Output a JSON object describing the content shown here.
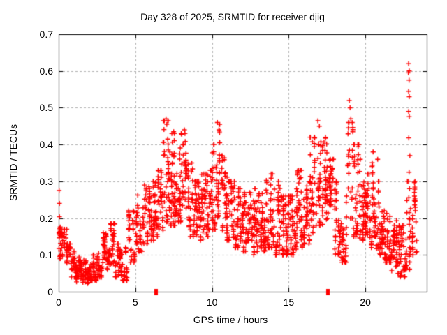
{
  "chart_data": {
    "type": "scatter",
    "title": "Day 328 of 2025, SRMTID for receiver djig",
    "xlabel": "GPS time / hours",
    "ylabel": "SRMTID / TECUs",
    "xlim": [
      0,
      24
    ],
    "ylim": [
      0,
      0.7
    ],
    "xticks": [
      {
        "v": 0,
        "label": "0"
      },
      {
        "v": 5,
        "label": "5"
      },
      {
        "v": 10,
        "label": "10"
      },
      {
        "v": 15,
        "label": "15"
      },
      {
        "v": 20,
        "label": "20"
      }
    ],
    "yticks": [
      {
        "v": 0.0,
        "label": "0"
      },
      {
        "v": 0.1,
        "label": "0.1"
      },
      {
        "v": 0.2,
        "label": "0.2"
      },
      {
        "v": 0.3,
        "label": "0.3"
      },
      {
        "v": 0.4,
        "label": "0.4"
      },
      {
        "v": 0.5,
        "label": "0.5"
      },
      {
        "v": 0.6,
        "label": "0.6"
      },
      {
        "v": 0.7,
        "label": "0.7"
      }
    ],
    "grid": true,
    "legend": "none",
    "marker": {
      "shape": "plus",
      "color": "#ff0000",
      "size": 7
    },
    "colors": {
      "marker": "#ff0000",
      "grid": "#b0b0b0",
      "frame": "#000000",
      "background": "#ffffff",
      "text": "#000000"
    },
    "axis_marker_squares_hours": [
      6.35,
      17.55
    ],
    "seed": 1328,
    "envelope_bins": [
      [
        0.0,
        0.15,
        0.09,
        0.28,
        22
      ],
      [
        0.15,
        0.5,
        0.055,
        0.17,
        30
      ],
      [
        0.5,
        0.9,
        0.04,
        0.13,
        36
      ],
      [
        0.9,
        1.3,
        0.025,
        0.11,
        38
      ],
      [
        1.3,
        1.7,
        0.02,
        0.09,
        40
      ],
      [
        1.7,
        2.1,
        0.02,
        0.085,
        44
      ],
      [
        2.1,
        2.5,
        0.03,
        0.1,
        44
      ],
      [
        2.5,
        2.9,
        0.04,
        0.13,
        40
      ],
      [
        2.9,
        3.3,
        0.06,
        0.16,
        44
      ],
      [
        3.3,
        3.7,
        0.075,
        0.185,
        44
      ],
      [
        3.7,
        4.1,
        0.04,
        0.13,
        40
      ],
      [
        4.1,
        4.5,
        0.03,
        0.12,
        36
      ],
      [
        4.5,
        5.0,
        0.08,
        0.22,
        42
      ],
      [
        5.0,
        5.5,
        0.11,
        0.27,
        46
      ],
      [
        5.5,
        6.0,
        0.13,
        0.29,
        46
      ],
      [
        6.0,
        6.4,
        0.14,
        0.3,
        42
      ],
      [
        6.4,
        6.8,
        0.15,
        0.33,
        42
      ],
      [
        6.8,
        7.2,
        0.19,
        0.465,
        46
      ],
      [
        7.2,
        7.6,
        0.18,
        0.43,
        46
      ],
      [
        7.6,
        8.0,
        0.19,
        0.4,
        46
      ],
      [
        8.0,
        8.4,
        0.17,
        0.43,
        42
      ],
      [
        8.4,
        8.8,
        0.15,
        0.35,
        42
      ],
      [
        8.8,
        9.2,
        0.13,
        0.3,
        46
      ],
      [
        9.2,
        9.6,
        0.14,
        0.32,
        46
      ],
      [
        9.6,
        10.0,
        0.15,
        0.33,
        46
      ],
      [
        10.0,
        10.3,
        0.17,
        0.4,
        34
      ],
      [
        10.3,
        10.6,
        0.19,
        0.455,
        34
      ],
      [
        10.6,
        11.0,
        0.16,
        0.37,
        44
      ],
      [
        11.0,
        11.5,
        0.14,
        0.3,
        54
      ],
      [
        11.5,
        12.0,
        0.12,
        0.28,
        54
      ],
      [
        12.0,
        12.5,
        0.11,
        0.27,
        54
      ],
      [
        12.5,
        13.0,
        0.1,
        0.28,
        54
      ],
      [
        13.0,
        13.5,
        0.11,
        0.3,
        54
      ],
      [
        13.5,
        14.0,
        0.12,
        0.32,
        54
      ],
      [
        14.0,
        14.5,
        0.1,
        0.3,
        54
      ],
      [
        14.5,
        15.0,
        0.1,
        0.26,
        54
      ],
      [
        15.0,
        15.5,
        0.1,
        0.26,
        54
      ],
      [
        15.5,
        16.0,
        0.12,
        0.33,
        50
      ],
      [
        16.0,
        16.4,
        0.13,
        0.3,
        44
      ],
      [
        16.4,
        16.8,
        0.16,
        0.42,
        40
      ],
      [
        16.8,
        17.2,
        0.18,
        0.465,
        40
      ],
      [
        17.2,
        17.6,
        0.18,
        0.42,
        40
      ],
      [
        17.6,
        18.0,
        0.16,
        0.36,
        40
      ],
      [
        18.0,
        18.4,
        0.1,
        0.3,
        40
      ],
      [
        18.4,
        18.8,
        0.08,
        0.28,
        40
      ],
      [
        18.8,
        19.2,
        0.2,
        0.46,
        36
      ],
      [
        19.2,
        19.6,
        0.15,
        0.4,
        44
      ],
      [
        19.6,
        20.0,
        0.14,
        0.36,
        44
      ],
      [
        20.0,
        20.4,
        0.12,
        0.32,
        44
      ],
      [
        20.4,
        20.7,
        0.15,
        0.38,
        34
      ],
      [
        20.7,
        21.2,
        0.1,
        0.3,
        50
      ],
      [
        21.2,
        21.7,
        0.08,
        0.22,
        54
      ],
      [
        21.7,
        22.2,
        0.05,
        0.2,
        54
      ],
      [
        22.2,
        22.6,
        0.04,
        0.18,
        50
      ],
      [
        22.6,
        23.0,
        0.06,
        0.3,
        44
      ],
      [
        23.0,
        23.35,
        0.1,
        0.3,
        30
      ]
    ],
    "outlier_points": [
      [
        0.03,
        0.275
      ],
      [
        0.05,
        0.24
      ],
      [
        7.0,
        0.47
      ],
      [
        7.05,
        0.455
      ],
      [
        7.5,
        0.435
      ],
      [
        8.2,
        0.44
      ],
      [
        10.35,
        0.46
      ],
      [
        10.45,
        0.44
      ],
      [
        16.9,
        0.465
      ],
      [
        17.0,
        0.45
      ],
      [
        18.95,
        0.52
      ],
      [
        19.0,
        0.5
      ],
      [
        19.05,
        0.47
      ],
      [
        20.5,
        0.38
      ],
      [
        20.8,
        0.36
      ],
      [
        22.82,
        0.62
      ],
      [
        22.86,
        0.6
      ],
      [
        22.8,
        0.595
      ],
      [
        22.85,
        0.575
      ],
      [
        22.82,
        0.545
      ],
      [
        22.86,
        0.53
      ],
      [
        22.82,
        0.49
      ],
      [
        22.86,
        0.476
      ],
      [
        22.83,
        0.418
      ],
      [
        22.9,
        0.37
      ],
      [
        22.85,
        0.325
      ],
      [
        22.88,
        0.28
      ],
      [
        23.2,
        0.26
      ],
      [
        23.25,
        0.22
      ],
      [
        23.3,
        0.19
      ]
    ]
  }
}
